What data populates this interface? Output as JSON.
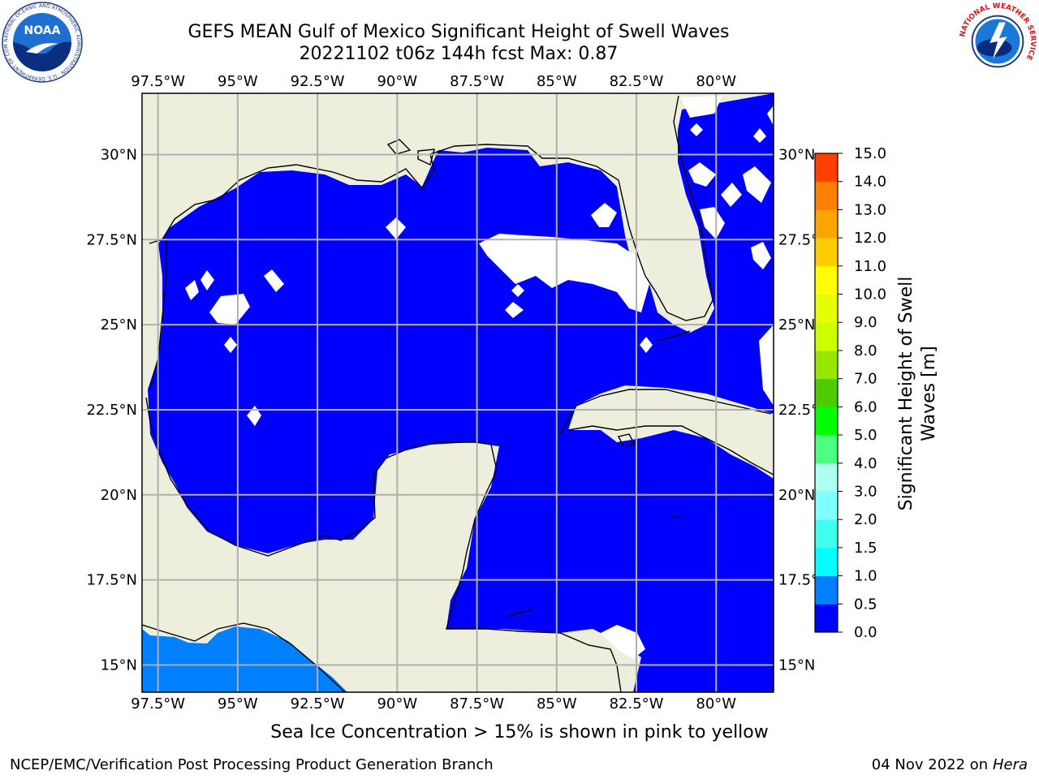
{
  "title_line1": "GEFS MEAN Gulf of Mexico Significant Height of Swell Waves",
  "title_line2": "20221102 t06z 144h fcst   Max: 0.87",
  "caption": "Sea Ice Concentration > 15% is shown in pink to yellow",
  "footer_left": "NCEP/EMC/Verification Post Processing Product Generation Branch",
  "footer_date": "04 Nov 2022 on",
  "footer_host": "Hera",
  "logos": {
    "noaa_text": "NOAA",
    "noaa_ring": "NATIONAL OCEANIC AND ATMOSPHERIC ADMINISTRATION · U.S. DEPARTMENT OF COMMERCE",
    "nws_ring": "NATIONAL WEATHER SERVICE"
  },
  "map": {
    "lon_range": [
      -98,
      -78.2
    ],
    "lat_range": [
      14.2,
      31.8
    ],
    "lon_ticks": [
      -97.5,
      -95,
      -92.5,
      -90,
      -87.5,
      -85,
      -82.5,
      -80
    ],
    "lon_labels": [
      "97.5°W",
      "95°W",
      "92.5°W",
      "90°W",
      "87.5°W",
      "85°W",
      "82.5°W",
      "80°W"
    ],
    "lat_ticks": [
      15,
      17.5,
      20,
      22.5,
      25,
      27.5,
      30
    ],
    "lat_labels": [
      "15°N",
      "17.5°N",
      "20°N",
      "22.5°N",
      "25°N",
      "27.5°N",
      "30°N"
    ],
    "colors": {
      "land": "#eeeedd",
      "ocean_low": "#0000ff",
      "ocean_high": "#007fff",
      "grid": "#b0b0b0",
      "coast": "#000000"
    }
  },
  "colorbar": {
    "label": "Significant Height of Swell Waves [m]",
    "label_line1": "Significant Height of Swell",
    "label_line2": "Waves [m]",
    "levels": [
      0.0,
      0.5,
      1.0,
      1.5,
      2.0,
      3.0,
      4.0,
      5.0,
      6.0,
      7.0,
      8.0,
      9.0,
      10.0,
      11.0,
      12.0,
      13.0,
      14.0,
      15.0
    ],
    "tick_labels": [
      "0.0",
      "0.5",
      "1.0",
      "1.5",
      "2.0",
      "3.0",
      "4.0",
      "5.0",
      "6.0",
      "7.0",
      "8.0",
      "9.0",
      "10.0",
      "11.0",
      "12.0",
      "13.0",
      "14.0",
      "15.0"
    ],
    "colors": [
      "#0000ff",
      "#007fff",
      "#00ffff",
      "#3ffff0",
      "#7fffff",
      "#adfff0",
      "#4cff7f",
      "#00ff00",
      "#4ccc00",
      "#99e600",
      "#ccff00",
      "#e6ff00",
      "#ffff00",
      "#ffcc00",
      "#ffa500",
      "#ff7f00",
      "#ff4000",
      "#ff0000"
    ]
  }
}
